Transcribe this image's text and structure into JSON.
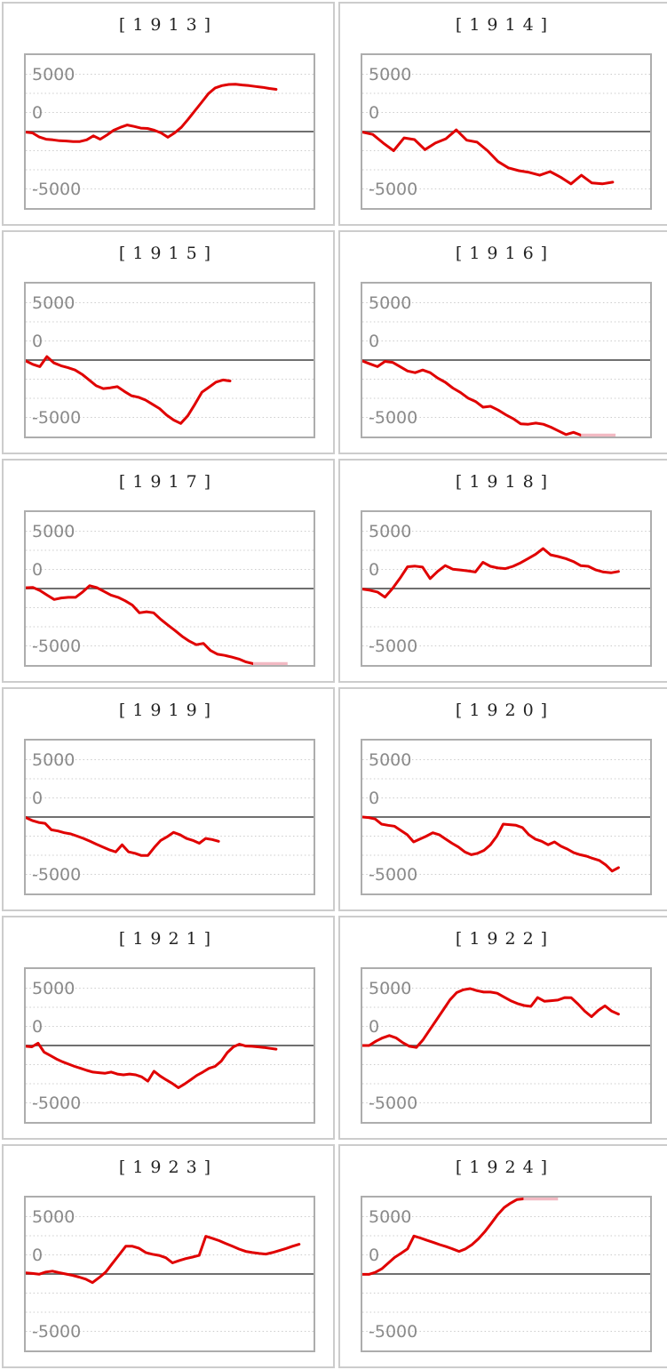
{
  "axis": {
    "tick_labels": [
      "5000",
      "0",
      "-5000"
    ],
    "tick_values": [
      5000,
      0,
      -5000
    ],
    "ylim": [
      -6667,
      6667
    ],
    "zero_line_value": 0,
    "grid": "dotted-horizontal"
  },
  "colors": {
    "line": "#e00000",
    "clipped": "#f2b9c3",
    "zero_line": "#707070",
    "gridline": "#cccccc",
    "axis_label": "#8a8a8a",
    "box_border": "#adadad",
    "card_border": "#cccccc"
  },
  "chart_data": [
    {
      "type": "line",
      "year": "1913",
      "title": "[1913]",
      "x_end": 0.87,
      "clip": null,
      "values": [
        -50,
        -120,
        -470,
        -670,
        -720,
        -800,
        -820,
        -870,
        -870,
        -720,
        -370,
        -670,
        -300,
        120,
        370,
        570,
        450,
        300,
        270,
        120,
        -120,
        -500,
        -120,
        370,
        1070,
        1820,
        2560,
        3310,
        3810,
        4010,
        4110,
        4130,
        4060,
        4010,
        3930,
        3860,
        3760,
        3680
      ]
    },
    {
      "type": "line",
      "year": "1914",
      "title": "[1914]",
      "x_end": 0.87,
      "clip": null,
      "values": [
        -50,
        -250,
        -1000,
        -1670,
        -550,
        -700,
        -1570,
        -1000,
        -630,
        150,
        -750,
        -920,
        -1670,
        -2610,
        -3160,
        -3410,
        -3560,
        -3810,
        -3490,
        -3980,
        -4560,
        -3810,
        -4480,
        -4560,
        -4410
      ]
    },
    {
      "type": "line",
      "year": "1915",
      "title": "[1915]",
      "x_end": 0.71,
      "clip": null,
      "values": [
        -70,
        -370,
        -570,
        300,
        -250,
        -500,
        -670,
        -870,
        -1245,
        -1740,
        -2240,
        -2490,
        -2420,
        -2320,
        -2740,
        -3110,
        -3240,
        -3490,
        -3860,
        -4230,
        -4800,
        -5230,
        -5530,
        -4860,
        -3860,
        -2810,
        -2370,
        -1920,
        -1740,
        -1820
      ]
    },
    {
      "type": "line",
      "year": "1916",
      "title": "[1916]",
      "x_end": 0.76,
      "clip": {
        "edge": "bottom",
        "x_from": 0.76,
        "x_to": 0.88
      },
      "values": [
        -80,
        -330,
        -570,
        -120,
        -200,
        -570,
        -950,
        -1100,
        -870,
        -1100,
        -1570,
        -1940,
        -2440,
        -2820,
        -3310,
        -3610,
        -4110,
        -4030,
        -4360,
        -4760,
        -5110,
        -5560,
        -5600,
        -5500,
        -5600,
        -5850,
        -6180,
        -6500,
        -6300,
        -6600
      ]
    },
    {
      "type": "line",
      "year": "1917",
      "title": "[1917]",
      "x_end": 0.79,
      "clip": {
        "edge": "bottom",
        "x_from": 0.79,
        "x_to": 0.91
      },
      "values": [
        70,
        100,
        -170,
        -570,
        -950,
        -820,
        -770,
        -770,
        -300,
        250,
        80,
        -250,
        -570,
        -770,
        -1070,
        -1440,
        -2120,
        -2020,
        -2120,
        -2690,
        -3190,
        -3660,
        -4160,
        -4580,
        -4900,
        -4780,
        -5400,
        -5730,
        -5830,
        -5980,
        -6150,
        -6400,
        -6600
      ]
    },
    {
      "type": "line",
      "year": "1918",
      "title": "[1918]",
      "x_end": 0.89,
      "clip": null,
      "values": [
        -50,
        -150,
        -300,
        -750,
        0,
        900,
        1900,
        1950,
        1870,
        870,
        1500,
        2000,
        1690,
        1620,
        1540,
        1440,
        2290,
        1940,
        1790,
        1740,
        1940,
        2240,
        2610,
        2990,
        3490,
        2940,
        2790,
        2610,
        2360,
        1990,
        1940,
        1620,
        1440,
        1370,
        1490
      ]
    },
    {
      "type": "line",
      "year": "1919",
      "title": "[1919]",
      "x_end": 0.67,
      "clip": null,
      "values": [
        -50,
        -300,
        -470,
        -550,
        -1120,
        -1220,
        -1370,
        -1470,
        -1670,
        -1870,
        -2120,
        -2370,
        -2610,
        -2860,
        -3040,
        -2420,
        -3040,
        -3160,
        -3360,
        -3360,
        -2660,
        -2040,
        -1720,
        -1340,
        -1540,
        -1870,
        -2040,
        -2290,
        -1870,
        -1960,
        -2120
      ]
    },
    {
      "type": "line",
      "year": "1920",
      "title": "[1920]",
      "x_end": 0.89,
      "clip": null,
      "values": [
        0,
        -50,
        -170,
        -620,
        -720,
        -800,
        -1170,
        -1540,
        -2170,
        -1920,
        -1670,
        -1370,
        -1540,
        -1920,
        -2290,
        -2610,
        -3040,
        -3290,
        -3160,
        -2910,
        -2420,
        -1670,
        -620,
        -670,
        -720,
        -920,
        -1540,
        -1920,
        -2120,
        -2420,
        -2170,
        -2540,
        -2790,
        -3110,
        -3290,
        -3410,
        -3610,
        -3780,
        -4160,
        -4710,
        -4410
      ]
    },
    {
      "type": "line",
      "year": "1921",
      "title": "[1921]",
      "x_end": 0.87,
      "clip": null,
      "values": [
        -70,
        -120,
        200,
        -570,
        -870,
        -1170,
        -1420,
        -1620,
        -1820,
        -1990,
        -2170,
        -2320,
        -2370,
        -2420,
        -2320,
        -2490,
        -2560,
        -2490,
        -2560,
        -2740,
        -3110,
        -2240,
        -2660,
        -2990,
        -3310,
        -3680,
        -3360,
        -2990,
        -2610,
        -2320,
        -1990,
        -1820,
        -1370,
        -620,
        -120,
        120,
        -50,
        -70,
        -120,
        -170,
        -250,
        -320
      ]
    },
    {
      "type": "line",
      "year": "1922",
      "title": "[1922]",
      "x_end": 0.89,
      "clip": null,
      "values": [
        0,
        0,
        370,
        670,
        870,
        670,
        250,
        -70,
        -170,
        500,
        1370,
        2240,
        3110,
        3980,
        4610,
        4860,
        4960,
        4780,
        4660,
        4660,
        4560,
        4230,
        3910,
        3660,
        3490,
        3410,
        4180,
        3860,
        3910,
        3960,
        4180,
        4160,
        3610,
        2990,
        2510,
        3060,
        3460,
        2990,
        2740
      ]
    },
    {
      "type": "line",
      "year": "1923",
      "title": "[1923]",
      "x_end": 0.95,
      "clip": null,
      "values": [
        100,
        50,
        -20,
        170,
        250,
        120,
        0,
        -120,
        -270,
        -450,
        -750,
        -320,
        170,
        920,
        1670,
        2420,
        2420,
        2240,
        1870,
        1720,
        1620,
        1420,
        970,
        1170,
        1340,
        1470,
        1620,
        3290,
        3110,
        2910,
        2660,
        2420,
        2170,
        1970,
        1870,
        1790,
        1740,
        1870,
        2040,
        2220,
        2420,
        2590
      ]
    },
    {
      "type": "line",
      "year": "1924",
      "title": "[1924]",
      "x_end": 0.56,
      "clip": {
        "edge": "top",
        "x_from": 0.56,
        "x_to": 0.68
      },
      "values": [
        -30,
        -30,
        140,
        450,
        940,
        1440,
        1810,
        2190,
        3310,
        3140,
        2940,
        2760,
        2560,
        2390,
        2190,
        1970,
        2190,
        2560,
        3060,
        3690,
        4430,
        5180,
        5800,
        6180,
        6500,
        6600
      ]
    }
  ]
}
